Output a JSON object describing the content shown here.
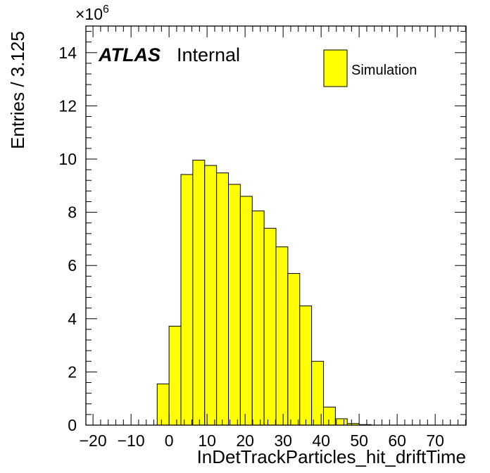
{
  "chart_data": {
    "type": "bar",
    "ylabel": "Entries / 3.125",
    "xlabel": "InDetTrackParticles_hit_driftTime",
    "exponent_label": "×10",
    "exponent_power": "6",
    "bin_width": 3.125,
    "xlim": [
      -21.875,
      78.125
    ],
    "ylim": [
      0,
      15
    ],
    "x_ticks": [
      -20,
      -10,
      0,
      10,
      20,
      30,
      40,
      50,
      60,
      70
    ],
    "x_tick_labels": [
      "−20",
      "−10",
      "0",
      "10",
      "20",
      "30",
      "40",
      "50",
      "60",
      "70"
    ],
    "y_ticks": [
      0,
      2,
      4,
      6,
      8,
      10,
      12,
      14
    ],
    "y_tick_labels": [
      "0",
      "2",
      "4",
      "6",
      "8",
      "10",
      "12",
      "14"
    ],
    "bin_low_edges": [
      -3.125,
      0,
      3.125,
      6.25,
      9.375,
      12.5,
      15.625,
      18.75,
      21.875,
      25,
      28.125,
      31.25,
      34.375,
      37.5,
      40.625,
      43.75,
      46.875,
      50
    ],
    "values": [
      1.55,
      3.72,
      9.42,
      9.96,
      9.76,
      9.48,
      9.05,
      8.6,
      8.05,
      7.4,
      6.7,
      5.7,
      4.48,
      2.4,
      0.68,
      0.24,
      0.06,
      0.02
    ],
    "fill_color": "#ffff00",
    "legend": {
      "position": "top-right",
      "entries": [
        {
          "label": "Simulation",
          "color": "#ffff00"
        }
      ]
    },
    "annotations": {
      "atlas": "ATLAS",
      "status": "Internal"
    },
    "grid": false
  }
}
